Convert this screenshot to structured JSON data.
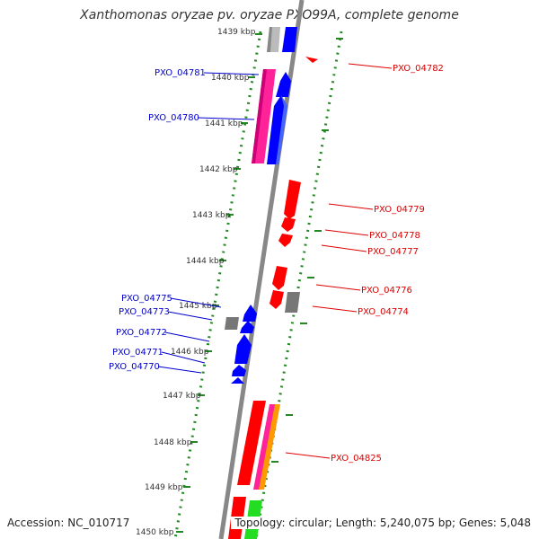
{
  "title": "Xanthomonas oryzae pv. oryzae PXO99A, complete genome",
  "footer": {
    "accession": "Accession: NC_010717",
    "topology": "Topology: circular; Length: 5,240,075 bp; Genes: 5,048"
  },
  "colors": {
    "plus_strand_cds": "#0000ff",
    "minus_strand_cds": "#ff0000",
    "gray_feature": "#777777",
    "light_gray_feature": "#bbbbbb",
    "magenta_feature": "#ff2299",
    "green_feature": "#22dd22",
    "orange_feature": "#ff9900",
    "backbone": "#888888",
    "tick_dots": "#228822",
    "blue_label": "#0000cc",
    "red_label": "#dd0000"
  },
  "kbp_ticks": [
    "1439 kbp",
    "1440 kbp",
    "1441 kbp",
    "1442 kbp",
    "1443 kbp",
    "1444 kbp",
    "1445 kbp",
    "1446 kbp",
    "1447 kbp",
    "1448 kbp",
    "1449 kbp",
    "1450 kbp"
  ],
  "left_labels": [
    "PXO_04781",
    "PXO_04780",
    "PXO_04775",
    "PXO_04773",
    "PXO_04772",
    "PXO_04771",
    "PXO_04770"
  ],
  "right_labels": [
    "PXO_04782",
    "PXO_04779",
    "PXO_04778",
    "PXO_04777",
    "PXO_04776",
    "PXO_04774",
    "PXO_04825"
  ]
}
